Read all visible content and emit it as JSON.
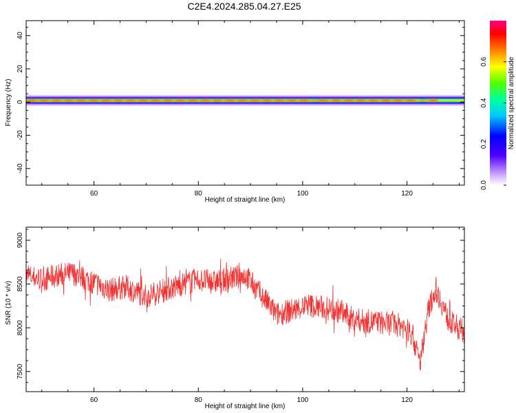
{
  "title": "C2E4.2024.285.04.27.E25",
  "colors": {
    "line": "#f03232",
    "background": "#ffffff",
    "axes": "#000000"
  },
  "chart_data": [
    {
      "type": "heatmap",
      "xlabel": "Height of straight line (km)",
      "ylabel": "Frequency (Hz)",
      "xlim": [
        47,
        131
      ],
      "ylim": [
        -50,
        49
      ],
      "xticks": [
        60,
        80,
        100,
        120
      ],
      "yticks": [
        -40,
        -20,
        0,
        20,
        40
      ],
      "grid": false,
      "description_band_center_hz": 1,
      "colorbar": {
        "label": "Normalized spectral amplitude",
        "range": [
          0.0,
          0.8
        ],
        "ticks": [
          "0.0",
          "0.2",
          "0.4",
          "0.6"
        ],
        "colormap": "rainbow (white-violet-blue-cyan-green-yellow-orange-red-magenta)"
      },
      "band": {
        "center_hz": 1,
        "half_width_hz": 3,
        "peak_segments_km": [
          [
            47,
            102
          ],
          [
            103,
            122
          ],
          [
            124,
            126
          ]
        ]
      }
    },
    {
      "type": "line",
      "xlabel": "Height of straight line (km)",
      "ylabel": "SNR (10 * v/v)",
      "xlim": [
        47,
        131
      ],
      "ylim": [
        7270,
        9150
      ],
      "xticks": [
        60,
        80,
        100,
        120
      ],
      "yticks": [
        7500,
        8000,
        8500,
        9000
      ],
      "grid": false,
      "series": [
        {
          "x": [
            47,
            50,
            53,
            56,
            60,
            63,
            66,
            70,
            73,
            76,
            80,
            83,
            86,
            89,
            92,
            95,
            98,
            101,
            104,
            107,
            110,
            113,
            116,
            119,
            121,
            122.5,
            124,
            125.5,
            128,
            131
          ],
          "y": [
            8600,
            8550,
            8600,
            8620,
            8520,
            8430,
            8470,
            8360,
            8420,
            8480,
            8550,
            8520,
            8560,
            8600,
            8380,
            8150,
            8200,
            8260,
            8230,
            8190,
            8090,
            8070,
            8050,
            8030,
            7920,
            7600,
            8180,
            8450,
            8080,
            7950
          ],
          "noise_amplitude": 140
        }
      ]
    }
  ]
}
